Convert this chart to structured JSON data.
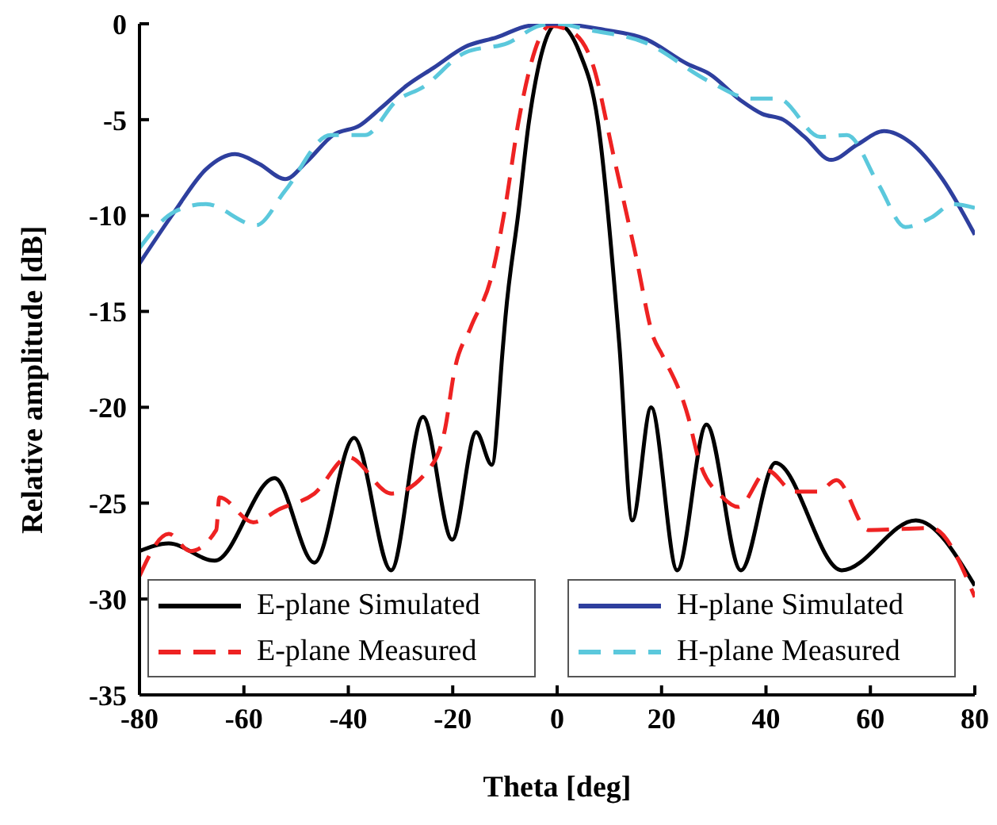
{
  "chart_data": {
    "type": "line",
    "xlabel": "Theta [deg]",
    "ylabel": "Relative amplitude [dB]",
    "xlim": [
      -80,
      80
    ],
    "xticks": [
      -80,
      -60,
      -40,
      -20,
      0,
      20,
      40,
      60,
      80
    ],
    "ylim": [
      -35,
      0
    ],
    "yticks": [
      -35,
      -30,
      -25,
      -20,
      -15,
      -10,
      -5,
      0
    ],
    "grid": false,
    "legend": "bottom",
    "series": [
      {
        "name": "E-plane Simulated",
        "color": "#000000",
        "line_style": "solid",
        "x": [
          -80,
          -74.4,
          -65.6,
          -54.1,
          -46.5,
          -38.9,
          -31.8,
          -25.7,
          -20.1,
          -15.5,
          -12.5,
          -10.4,
          -9.9,
          -7.4,
          -5.4,
          0,
          4.3,
          7.8,
          11.9,
          14.4,
          18,
          23,
          28.6,
          35.2,
          41.8,
          54.5,
          68.7,
          80
        ],
        "values": [
          -27.5,
          -27.1,
          -28,
          -23.7,
          -28.1,
          -21.6,
          -28.5,
          -20.5,
          -26.9,
          -21.3,
          -23,
          -16.9,
          -15.3,
          -9.8,
          -5.1,
          0,
          -1.5,
          -5.1,
          -16.7,
          -25.9,
          -20,
          -28.5,
          -20.9,
          -28.5,
          -22.9,
          -28.5,
          -25.9,
          -29.3
        ]
      },
      {
        "name": "E-plane Measured",
        "color": "#ee2222",
        "line_style": "dashed",
        "x": [
          -80,
          -74.4,
          -70.3,
          -65.3,
          -64.7,
          -58.2,
          -53.1,
          -46.5,
          -40,
          -31.7,
          -23.7,
          -21.6,
          -19.6,
          -16.5,
          -12.5,
          -9.9,
          -7.4,
          -1.3,
          2.7,
          6.8,
          10.9,
          15,
          18.5,
          20,
          25.1,
          27.1,
          31.7,
          34.7,
          40.3,
          45.4,
          50,
          53.5,
          59.6,
          71.7,
          80
        ],
        "values": [
          -28.8,
          -26.6,
          -27.5,
          -26.4,
          -24.7,
          -26,
          -25.3,
          -24.5,
          -22.6,
          -24.5,
          -22.9,
          -21.3,
          -18,
          -15.8,
          -13.1,
          -9.5,
          -5.1,
          -0.1,
          -0.4,
          -2.1,
          -7,
          -12,
          -16.4,
          -17.2,
          -20.5,
          -22.7,
          -24.7,
          -25.2,
          -23.3,
          -24.4,
          -24.4,
          -23.8,
          -26.4,
          -26.3,
          -29.9
        ]
      },
      {
        "name": "H-plane Simulated",
        "color": "#2e3f9e",
        "line_style": "solid",
        "x": [
          -80,
          -73.3,
          -67.3,
          -61.7,
          -57.1,
          -52.1,
          -48,
          -42.9,
          -37.8,
          -33.8,
          -28.7,
          -23.7,
          -17.6,
          -11.5,
          -5.4,
          0,
          8.8,
          17,
          25,
          29.1,
          35.2,
          39.3,
          43.3,
          47.4,
          52.5,
          57.5,
          62.6,
          67.7,
          73.8,
          80
        ],
        "values": [
          -12.5,
          -9.8,
          -7.6,
          -6.8,
          -7.3,
          -8.1,
          -7.2,
          -5.8,
          -5.3,
          -4.4,
          -3.2,
          -2.3,
          -1.2,
          -0.7,
          -0.1,
          0,
          -0.3,
          -0.8,
          -2.1,
          -2.6,
          -4,
          -4.7,
          -5,
          -5.9,
          -7.1,
          -6.3,
          -5.6,
          -6.2,
          -8.1,
          -11
        ]
      },
      {
        "name": "H-plane Measured",
        "color": "#5bc8dc",
        "line_style": "dashed",
        "x": [
          -80,
          -73.3,
          -67.3,
          -57.6,
          -52.1,
          -43.4,
          -36.8,
          -30.7,
          -25.7,
          -17.6,
          -9.4,
          -3.3,
          0,
          5.8,
          17,
          29.1,
          37.2,
          42.3,
          50.4,
          55.5,
          61.6,
          66.7,
          71.7,
          75.8,
          80
        ],
        "values": [
          -11.7,
          -9.8,
          -9.4,
          -10.5,
          -8.7,
          -5.8,
          -5.8,
          -4,
          -3.3,
          -1.5,
          -1,
          -0.1,
          0,
          -0.3,
          -1,
          -3,
          -3.9,
          -3.9,
          -5.9,
          -5.8,
          -8.4,
          -10.6,
          -10.1,
          -9.4,
          -9.6
        ]
      }
    ]
  }
}
